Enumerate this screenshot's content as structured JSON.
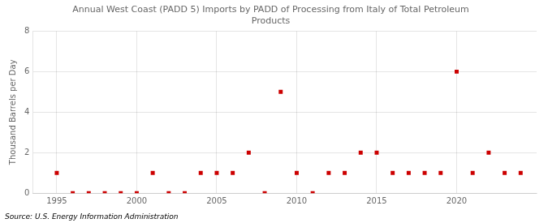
{
  "chart_data": {
    "type": "scatter",
    "title": "Annual West Coast (PADD 5) Imports by PADD of Processing from Italy of Total Petroleum\nProducts",
    "ylabel": "Thousand Barrels per Day",
    "source": "Source: U.S. Energy Information Administration",
    "x": [
      1995,
      1996,
      1997,
      1998,
      1999,
      2000,
      2001,
      2002,
      2003,
      2004,
      2005,
      2006,
      2007,
      2008,
      2009,
      2010,
      2011,
      2012,
      2013,
      2014,
      2015,
      2016,
      2017,
      2018,
      2019,
      2020,
      2021,
      2022,
      2023,
      2024
    ],
    "values": [
      1,
      0,
      0,
      0,
      0,
      0,
      1,
      0,
      0,
      1,
      1,
      1,
      2,
      0,
      5,
      1,
      0,
      1,
      1,
      2,
      2,
      1,
      1,
      1,
      1,
      6,
      1,
      2,
      1,
      1
    ],
    "color": "#cc0000",
    "marker": "square",
    "xlim": [
      1993.5,
      2025
    ],
    "xticks": [
      1995,
      2000,
      2005,
      2010,
      2015,
      2020
    ],
    "ylim": [
      0,
      8
    ],
    "yticks": [
      0,
      2,
      4,
      6,
      8
    ],
    "grid": true
  }
}
